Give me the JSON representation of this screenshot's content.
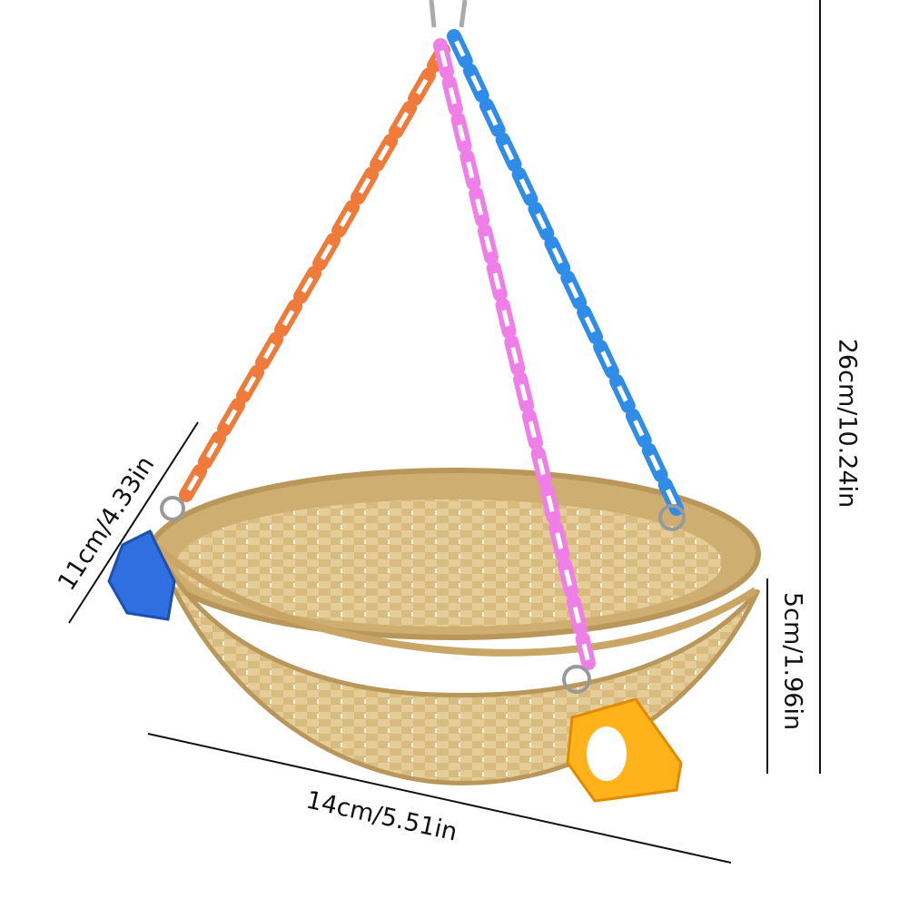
{
  "dimensions": {
    "height": "26cm/10.24in",
    "depth": "5cm/1.96in",
    "length": "14cm/5.51in",
    "width": "11cm/4.33in"
  }
}
